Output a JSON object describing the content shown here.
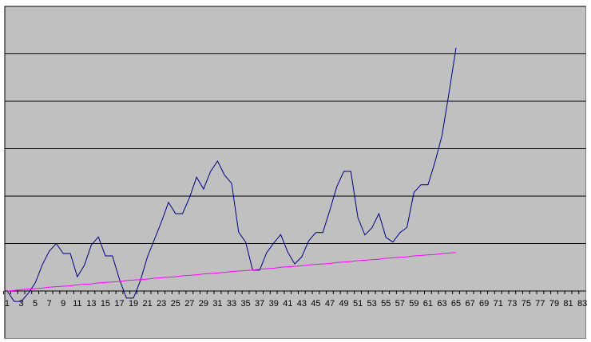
{
  "chart_data": {
    "type": "line",
    "categories": [
      1,
      null,
      3,
      null,
      5,
      null,
      7,
      null,
      9,
      null,
      11,
      null,
      13,
      null,
      15,
      null,
      17,
      null,
      19,
      null,
      21,
      null,
      23,
      null,
      25,
      null,
      27,
      null,
      29,
      null,
      31,
      null,
      33,
      null,
      35,
      null,
      37,
      null,
      39,
      null,
      41,
      null,
      43,
      null,
      45,
      null,
      47,
      null,
      49,
      null,
      51,
      null,
      53,
      null,
      55,
      null,
      57,
      null,
      59,
      null,
      61,
      null,
      63,
      null,
      65,
      null,
      67,
      null,
      69,
      null,
      71,
      null,
      73,
      null,
      75,
      null,
      77,
      null,
      79,
      null,
      81,
      null,
      83
    ],
    "series": [
      {
        "color": "#000080",
        "values": [
          0,
          -0.22,
          -0.22,
          -0.05,
          0.17,
          0.55,
          0.84,
          1.0,
          0.79,
          0.79,
          0.3,
          0.54,
          0.97,
          1.14,
          0.74,
          0.74,
          0.25,
          -0.15,
          -0.15,
          0.22,
          0.72,
          1.09,
          1.46,
          1.87,
          1.63,
          1.63,
          1.97,
          2.4,
          2.15,
          2.52,
          2.74,
          2.44,
          2.27,
          1.24,
          1.03,
          0.44,
          0.44,
          0.81,
          1.01,
          1.19,
          0.82,
          0.57,
          0.72,
          1.06,
          1.23,
          1.23,
          1.7,
          2.2,
          2.52,
          2.52,
          1.55,
          1.18,
          1.33,
          1.63,
          1.13,
          1.03,
          1.23,
          1.34,
          2.08,
          2.24,
          2.24,
          2.72,
          3.28,
          4.18,
          5.13,
          null,
          null,
          null,
          null,
          null,
          null,
          null,
          null,
          null,
          null,
          null,
          null,
          null,
          null,
          null,
          null,
          null,
          null
        ]
      },
      {
        "color": "#ff00ff",
        "values": [
          0,
          0.01,
          0.03,
          0.04,
          0.05,
          0.06,
          0.08,
          0.09,
          0.1,
          0.11,
          0.13,
          0.14,
          0.15,
          0.17,
          0.18,
          0.19,
          0.2,
          0.22,
          0.23,
          0.24,
          0.25,
          0.27,
          0.28,
          0.29,
          0.3,
          0.32,
          0.33,
          0.34,
          0.36,
          0.37,
          0.38,
          0.39,
          0.41,
          0.42,
          0.43,
          0.44,
          0.46,
          0.47,
          0.48,
          0.5,
          0.51,
          0.52,
          0.53,
          0.55,
          0.56,
          0.57,
          0.58,
          0.6,
          0.61,
          0.62,
          0.64,
          0.65,
          0.66,
          0.67,
          0.69,
          0.7,
          0.71,
          0.72,
          0.74,
          0.75,
          0.76,
          0.77,
          0.79,
          0.8,
          0.81,
          null,
          null,
          null,
          null,
          null,
          null,
          null,
          null,
          null,
          null,
          null,
          null,
          null,
          null,
          null,
          null,
          null,
          null
        ]
      }
    ],
    "ylim": [
      -1,
      6
    ],
    "yticks": [
      0,
      1,
      2,
      3,
      4,
      5,
      6
    ],
    "grid": true,
    "plot_background": "#c0c0c0"
  }
}
